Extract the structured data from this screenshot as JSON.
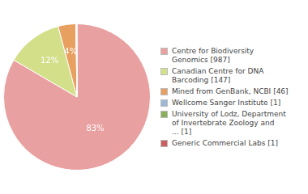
{
  "chart_data": {
    "type": "pie",
    "categories": [
      "Centre for Biodiversity\nGenomics [987]",
      "Canadian Centre for DNA\nBarcoding [147]",
      "Mined from GenBank, NCBI [46]",
      "Wellcome Sanger Institute [1]",
      "University of Lodz, Department\nof Invertebrate Zoology and\n... [1]",
      "Generic Commercial Labs [1]"
    ],
    "values": [
      987,
      147,
      46,
      1,
      1,
      1
    ],
    "value_labels": [
      "83%",
      "12%",
      "4%",
      null,
      null,
      null
    ],
    "colors": [
      "#e8a0a0",
      "#d4df8a",
      "#e8a060",
      "#a0b8d8",
      "#88b058",
      "#cc6060"
    ],
    "legend": "right"
  }
}
